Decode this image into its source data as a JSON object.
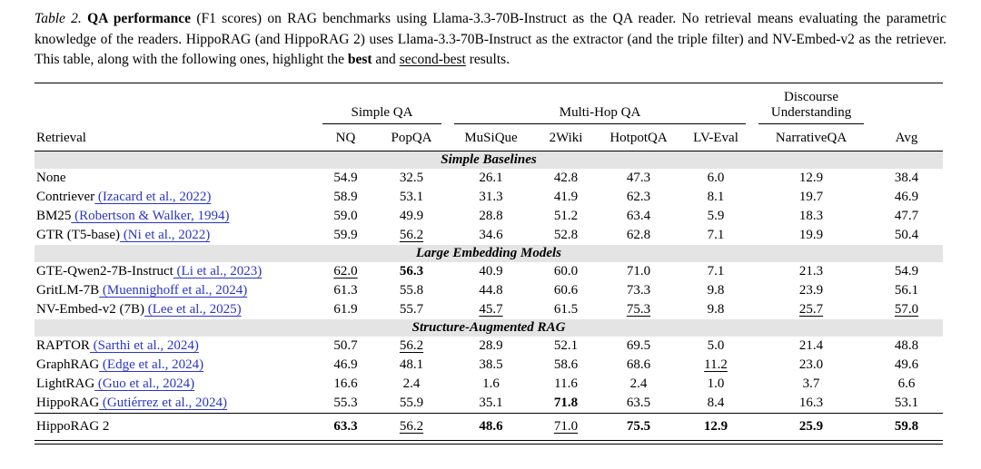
{
  "caption": {
    "label": "Table 2.",
    "title": " QA performance",
    "body": " (F1 scores) on RAG benchmarks using Llama-3.3-70B-Instruct as the QA reader. No retrieval means evaluating the parametric knowledge of the readers. HippoRAG (and HippoRAG 2) uses Llama-3.3-70B-Instruct as the extractor (and the triple filter) and NV-Embed-v2 as the retriever. This table, along with the following ones, highlight the ",
    "best_word": "best",
    "and_text": " and ",
    "second_best_word": "second-best",
    "end_text": " results."
  },
  "colors": {
    "link": "#2a35c8",
    "section_bg": "#e4e4e4",
    "rule": "#000000"
  },
  "table": {
    "groups": [
      {
        "label": "Simple QA",
        "span": 2
      },
      {
        "label": "Multi-Hop QA",
        "span": 4
      },
      {
        "label": "Discourse Understanding",
        "span": 1
      }
    ],
    "columns": [
      "Retrieval",
      "NQ",
      "PopQA",
      "MuSiQue",
      "2Wiki",
      "HotpotQA",
      "LV-Eval",
      "NarrativeQA",
      "Avg"
    ],
    "sections": [
      {
        "title": "Simple Baselines",
        "rows": [
          {
            "name": "None",
            "citation": "",
            "values": [
              "54.9",
              "32.5",
              "26.1",
              "42.8",
              "47.3",
              "6.0",
              "12.9",
              "38.4"
            ],
            "marks": [
              "",
              "",
              "",
              "",
              "",
              "",
              "",
              ""
            ]
          },
          {
            "name": "Contriever",
            "citation": "(Izacard et al., 2022)",
            "values": [
              "58.9",
              "53.1",
              "31.3",
              "41.9",
              "62.3",
              "8.1",
              "19.7",
              "46.9"
            ],
            "marks": [
              "",
              "",
              "",
              "",
              "",
              "",
              "",
              ""
            ]
          },
          {
            "name": "BM25",
            "citation": "(Robertson & Walker, 1994)",
            "values": [
              "59.0",
              "49.9",
              "28.8",
              "51.2",
              "63.4",
              "5.9",
              "18.3",
              "47.7"
            ],
            "marks": [
              "",
              "",
              "",
              "",
              "",
              "",
              "",
              ""
            ]
          },
          {
            "name": "GTR (T5-base)",
            "citation": "(Ni et al., 2022)",
            "values": [
              "59.9",
              "56.2",
              "34.6",
              "52.8",
              "62.8",
              "7.1",
              "19.9",
              "50.4"
            ],
            "marks": [
              "",
              "u",
              "",
              "",
              "",
              "",
              "",
              ""
            ]
          }
        ]
      },
      {
        "title": "Large Embedding Models",
        "rows": [
          {
            "name": "GTE-Qwen2-7B-Instruct",
            "citation": "(Li et al., 2023)",
            "values": [
              "62.0",
              "56.3",
              "40.9",
              "60.0",
              "71.0",
              "7.1",
              "21.3",
              "54.9"
            ],
            "marks": [
              "u",
              "b",
              "",
              "",
              "",
              "",
              "",
              ""
            ]
          },
          {
            "name": "GritLM-7B",
            "citation": "(Muennighoff et al., 2024)",
            "values": [
              "61.3",
              "55.8",
              "44.8",
              "60.6",
              "73.3",
              "9.8",
              "23.9",
              "56.1"
            ],
            "marks": [
              "",
              "",
              "",
              "",
              "",
              "",
              "",
              ""
            ]
          },
          {
            "name": "NV-Embed-v2 (7B)",
            "citation": "(Lee et al., 2025)",
            "values": [
              "61.9",
              "55.7",
              "45.7",
              "61.5",
              "75.3",
              "9.8",
              "25.7",
              "57.0"
            ],
            "marks": [
              "",
              "",
              "u",
              "",
              "u",
              "",
              "u",
              "u"
            ]
          }
        ]
      },
      {
        "title": "Structure-Augmented RAG",
        "rows": [
          {
            "name": "RAPTOR",
            "citation": "(Sarthi et al., 2024)",
            "values": [
              "50.7",
              "56.2",
              "28.9",
              "52.1",
              "69.5",
              "5.0",
              "21.4",
              "48.8"
            ],
            "marks": [
              "",
              "u",
              "",
              "",
              "",
              "",
              "",
              ""
            ]
          },
          {
            "name": "GraphRAG",
            "citation": "(Edge et al., 2024)",
            "values": [
              "46.9",
              "48.1",
              "38.5",
              "58.6",
              "68.6",
              "11.2",
              "23.0",
              "49.6"
            ],
            "marks": [
              "",
              "",
              "",
              "",
              "",
              "u",
              "",
              ""
            ]
          },
          {
            "name": "LightRAG",
            "citation": "(Guo et al., 2024)",
            "values": [
              "16.6",
              "2.4",
              "1.6",
              "11.6",
              "2.4",
              "1.0",
              "3.7",
              "6.6"
            ],
            "marks": [
              "",
              "",
              "",
              "",
              "",
              "",
              "",
              ""
            ]
          },
          {
            "name": "HippoRAG",
            "citation": "(Gutiérrez et al., 2024)",
            "values": [
              "55.3",
              "55.9",
              "35.1",
              "71.8",
              "63.5",
              "8.4",
              "16.3",
              "53.1"
            ],
            "marks": [
              "",
              "",
              "",
              "b",
              "",
              "",
              "",
              ""
            ]
          }
        ]
      }
    ],
    "final_row": {
      "name": "HippoRAG 2",
      "citation": "",
      "values": [
        "63.3",
        "56.2",
        "48.6",
        "71.0",
        "75.5",
        "12.9",
        "25.9",
        "59.8"
      ],
      "marks": [
        "b",
        "u",
        "b",
        "u",
        "b",
        "b",
        "b",
        "b"
      ]
    }
  }
}
